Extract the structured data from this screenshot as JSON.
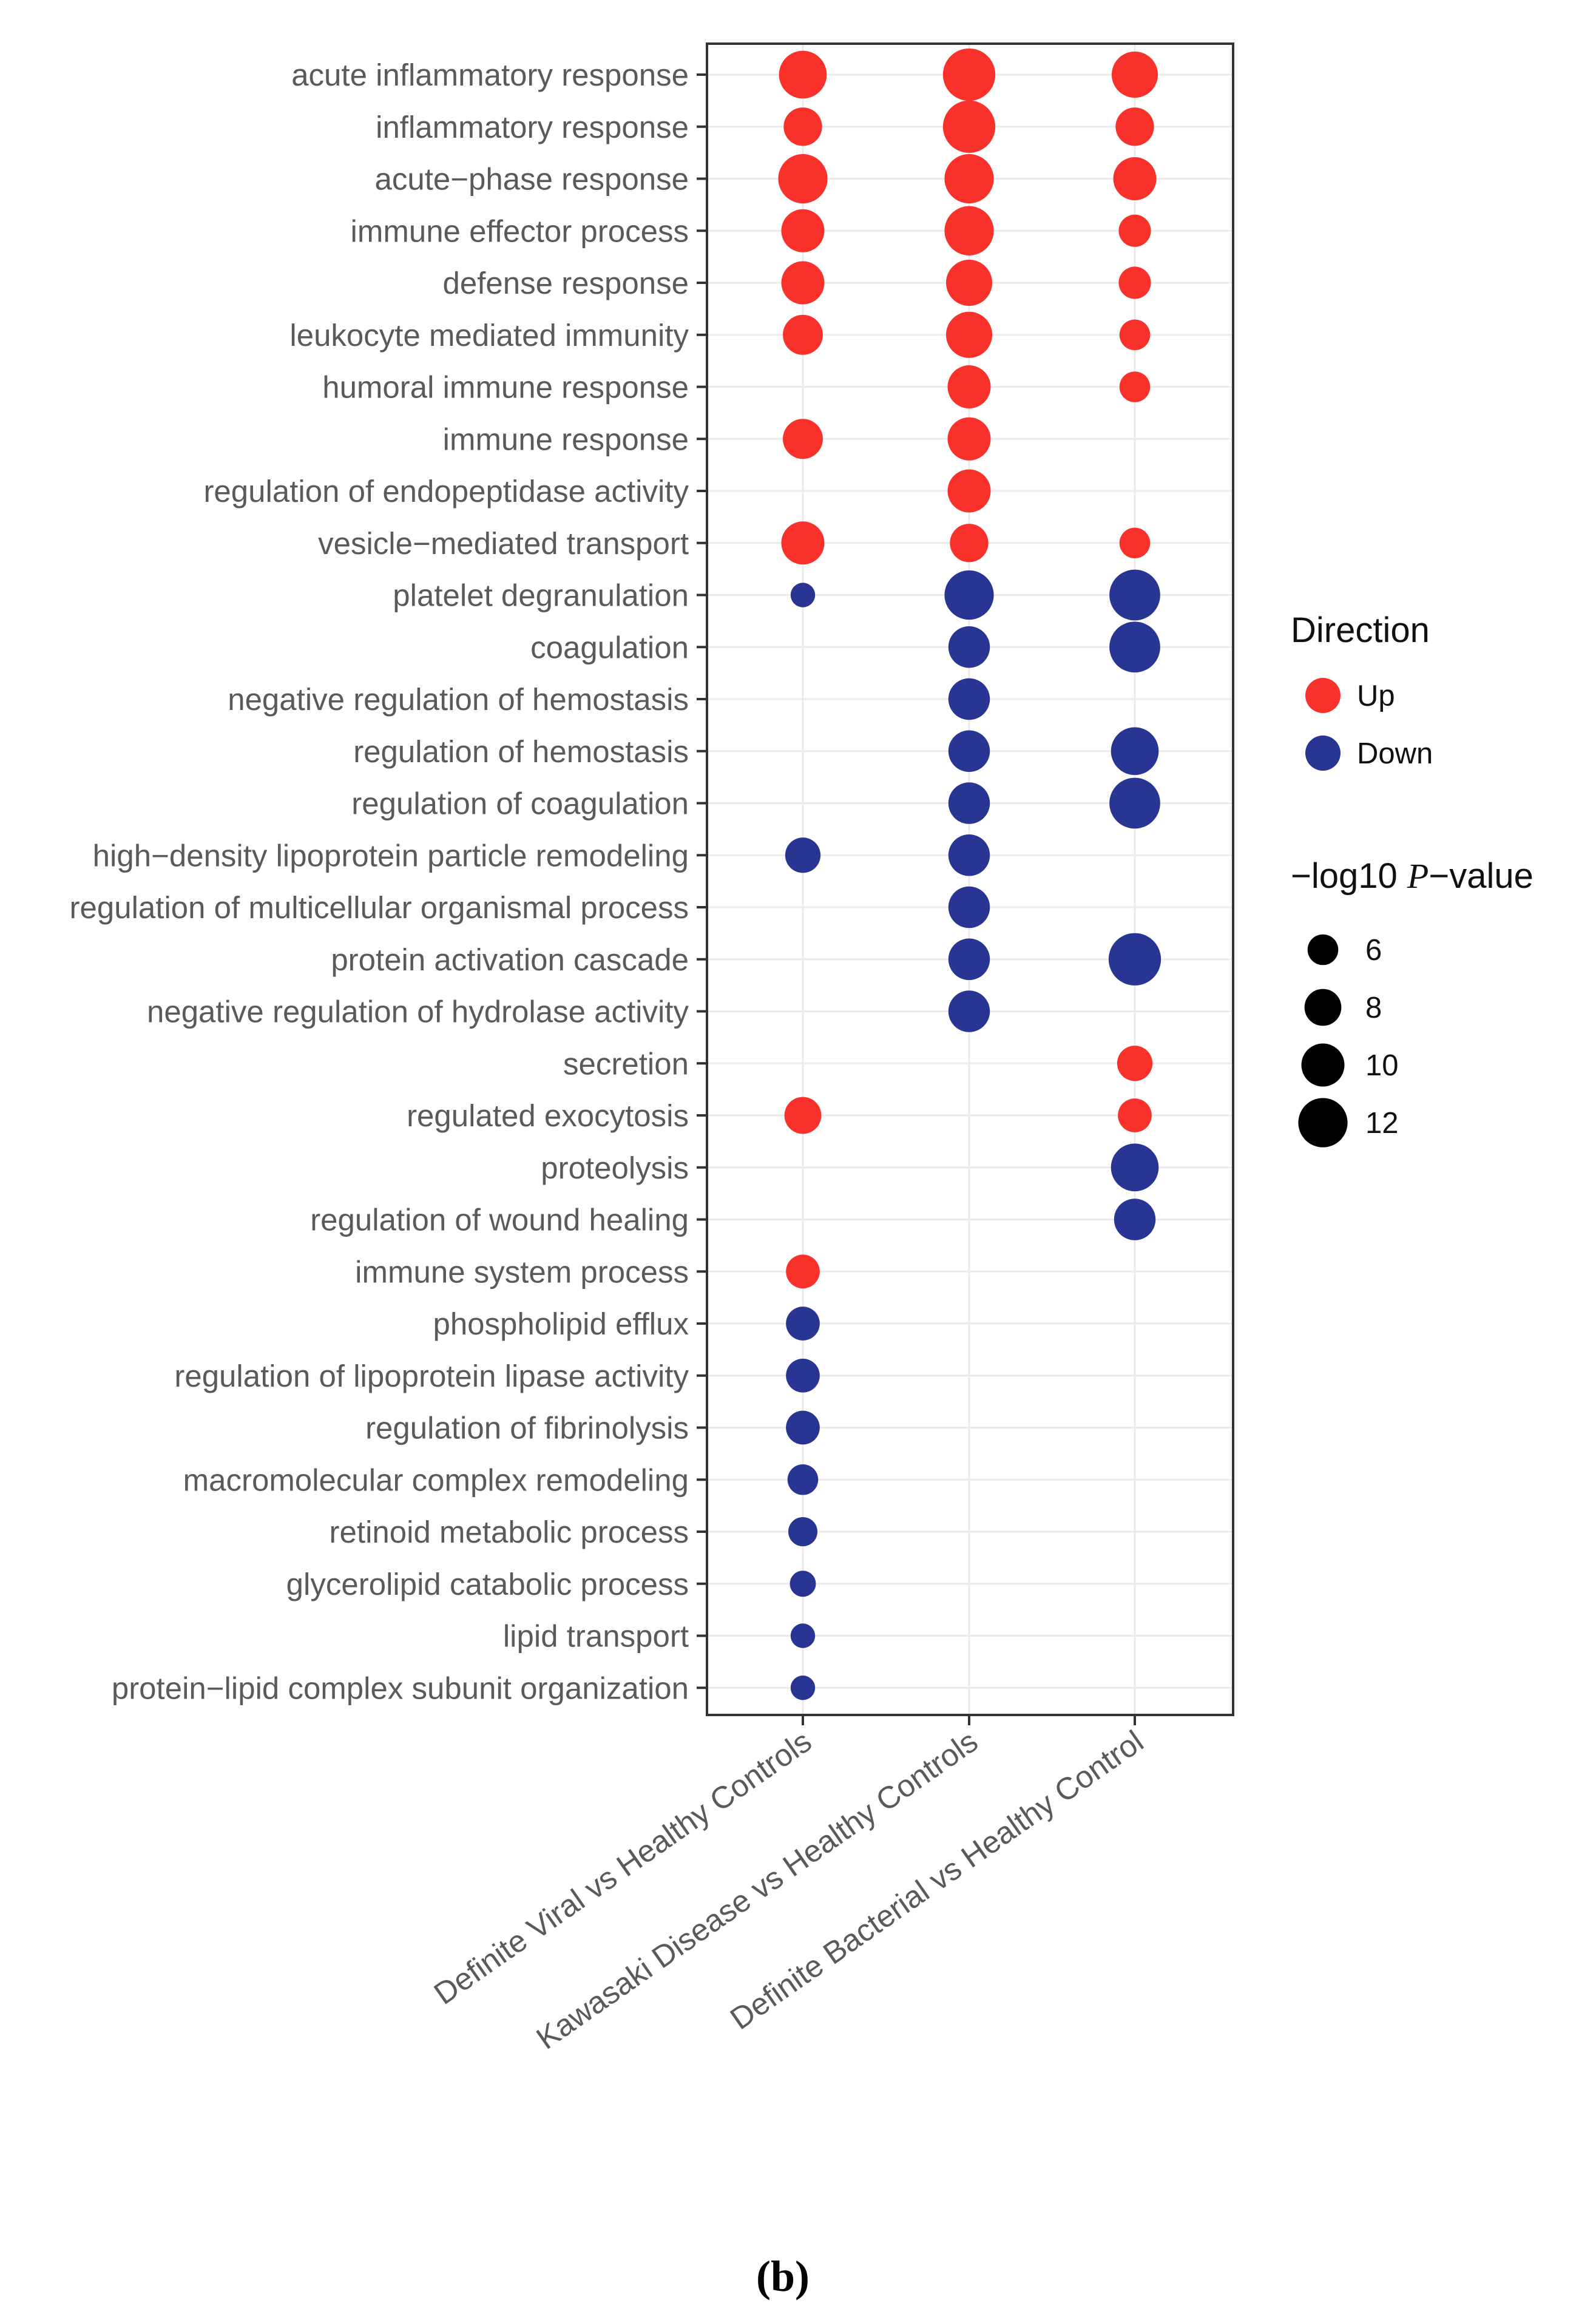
{
  "chart_data": {
    "type": "scatter",
    "subtype": "dot-plot",
    "categories_x": [
      "Definite Viral vs Healthy Controls",
      "Kawasaki Disease vs Healthy Controls",
      "Definite Bacterial vs Healthy Control"
    ],
    "categories_y": [
      "acute inflammatory response",
      "inflammatory response",
      "acute−phase response",
      "immune effector process",
      "defense response",
      "leukocyte mediated immunity",
      "humoral immune response",
      "immune response",
      "regulation of endopeptidase activity",
      "vesicle−mediated transport",
      "platelet degranulation",
      "coagulation",
      "negative regulation of hemostasis",
      "regulation of hemostasis",
      "regulation of coagulation",
      "high−density lipoprotein particle remodeling",
      "regulation of multicellular organismal process",
      "protein activation cascade",
      "negative regulation of hydrolase activity",
      "secretion",
      "regulated exocytosis",
      "proteolysis",
      "regulation of wound healing",
      "immune system process",
      "phospholipid efflux",
      "regulation of lipoprotein lipase activity",
      "regulation of fibrinolysis",
      "macromolecular complex remodeling",
      "retinoid metabolic process",
      "glycerolipid catabolic process",
      "lipid transport",
      "protein−lipid complex subunit organization"
    ],
    "points": [
      {
        "x": 0,
        "y": 0,
        "dir": "Up",
        "size": 11.5
      },
      {
        "x": 1,
        "y": 0,
        "dir": "Up",
        "size": 13
      },
      {
        "x": 2,
        "y": 0,
        "dir": "Up",
        "size": 11
      },
      {
        "x": 0,
        "y": 1,
        "dir": "Up",
        "size": 8.5
      },
      {
        "x": 1,
        "y": 1,
        "dir": "Up",
        "size": 13
      },
      {
        "x": 2,
        "y": 1,
        "dir": "Up",
        "size": 8.5
      },
      {
        "x": 0,
        "y": 2,
        "dir": "Up",
        "size": 12
      },
      {
        "x": 1,
        "y": 2,
        "dir": "Up",
        "size": 12
      },
      {
        "x": 2,
        "y": 2,
        "dir": "Up",
        "size": 10
      },
      {
        "x": 0,
        "y": 3,
        "dir": "Up",
        "size": 10
      },
      {
        "x": 1,
        "y": 3,
        "dir": "Up",
        "size": 12
      },
      {
        "x": 2,
        "y": 3,
        "dir": "Up",
        "size": 6.5
      },
      {
        "x": 0,
        "y": 4,
        "dir": "Up",
        "size": 10
      },
      {
        "x": 1,
        "y": 4,
        "dir": "Up",
        "size": 11
      },
      {
        "x": 2,
        "y": 4,
        "dir": "Up",
        "size": 6.5
      },
      {
        "x": 0,
        "y": 5,
        "dir": "Up",
        "size": 9
      },
      {
        "x": 1,
        "y": 5,
        "dir": "Up",
        "size": 11
      },
      {
        "x": 2,
        "y": 5,
        "dir": "Up",
        "size": 6
      },
      {
        "x": 1,
        "y": 6,
        "dir": "Up",
        "size": 10
      },
      {
        "x": 2,
        "y": 6,
        "dir": "Up",
        "size": 6
      },
      {
        "x": 0,
        "y": 7,
        "dir": "Up",
        "size": 9
      },
      {
        "x": 1,
        "y": 7,
        "dir": "Up",
        "size": 10
      },
      {
        "x": 1,
        "y": 8,
        "dir": "Up",
        "size": 10
      },
      {
        "x": 0,
        "y": 9,
        "dir": "Up",
        "size": 10
      },
      {
        "x": 1,
        "y": 9,
        "dir": "Up",
        "size": 8.5
      },
      {
        "x": 2,
        "y": 9,
        "dir": "Up",
        "size": 6
      },
      {
        "x": 0,
        "y": 10,
        "dir": "Down",
        "size": 4
      },
      {
        "x": 1,
        "y": 10,
        "dir": "Down",
        "size": 12
      },
      {
        "x": 2,
        "y": 10,
        "dir": "Down",
        "size": 12.5
      },
      {
        "x": 1,
        "y": 11,
        "dir": "Down",
        "size": 9.5
      },
      {
        "x": 2,
        "y": 11,
        "dir": "Down",
        "size": 12.5
      },
      {
        "x": 1,
        "y": 12,
        "dir": "Down",
        "size": 9.5
      },
      {
        "x": 1,
        "y": 13,
        "dir": "Down",
        "size": 9.5
      },
      {
        "x": 2,
        "y": 13,
        "dir": "Down",
        "size": 11.5
      },
      {
        "x": 1,
        "y": 14,
        "dir": "Down",
        "size": 9.5
      },
      {
        "x": 2,
        "y": 14,
        "dir": "Down",
        "size": 12.5
      },
      {
        "x": 0,
        "y": 15,
        "dir": "Down",
        "size": 7.5
      },
      {
        "x": 1,
        "y": 15,
        "dir": "Down",
        "size": 9.5
      },
      {
        "x": 1,
        "y": 16,
        "dir": "Down",
        "size": 9.5
      },
      {
        "x": 1,
        "y": 17,
        "dir": "Down",
        "size": 9.5
      },
      {
        "x": 2,
        "y": 17,
        "dir": "Down",
        "size": 13
      },
      {
        "x": 1,
        "y": 18,
        "dir": "Down",
        "size": 9.5
      },
      {
        "x": 2,
        "y": 19,
        "dir": "Up",
        "size": 7.5
      },
      {
        "x": 0,
        "y": 20,
        "dir": "Up",
        "size": 8
      },
      {
        "x": 2,
        "y": 20,
        "dir": "Up",
        "size": 7
      },
      {
        "x": 2,
        "y": 21,
        "dir": "Down",
        "size": 11.5
      },
      {
        "x": 2,
        "y": 22,
        "dir": "Down",
        "size": 9.5
      },
      {
        "x": 0,
        "y": 23,
        "dir": "Up",
        "size": 7
      },
      {
        "x": 0,
        "y": 24,
        "dir": "Down",
        "size": 7
      },
      {
        "x": 0,
        "y": 25,
        "dir": "Down",
        "size": 7
      },
      {
        "x": 0,
        "y": 26,
        "dir": "Down",
        "size": 7
      },
      {
        "x": 0,
        "y": 27,
        "dir": "Down",
        "size": 6
      },
      {
        "x": 0,
        "y": 28,
        "dir": "Down",
        "size": 5.5
      },
      {
        "x": 0,
        "y": 29,
        "dir": "Down",
        "size": 4.5
      },
      {
        "x": 0,
        "y": 30,
        "dir": "Down",
        "size": 4
      },
      {
        "x": 0,
        "y": 31,
        "dir": "Down",
        "size": 4
      }
    ],
    "legend": {
      "color_title": "Direction",
      "color_items": [
        {
          "label": "Up",
          "color": "#f8312b"
        },
        {
          "label": "Down",
          "color": "#283593"
        }
      ],
      "size_title": "−log10 P−value",
      "size_title_prefix": "−log10 ",
      "size_title_italic": "P",
      "size_title_suffix": "−value",
      "size_items": [
        6,
        8,
        10,
        12
      ],
      "size_item_labels": [
        "6",
        "8",
        "10",
        "12"
      ]
    },
    "grid": true,
    "caption": "(b)"
  }
}
